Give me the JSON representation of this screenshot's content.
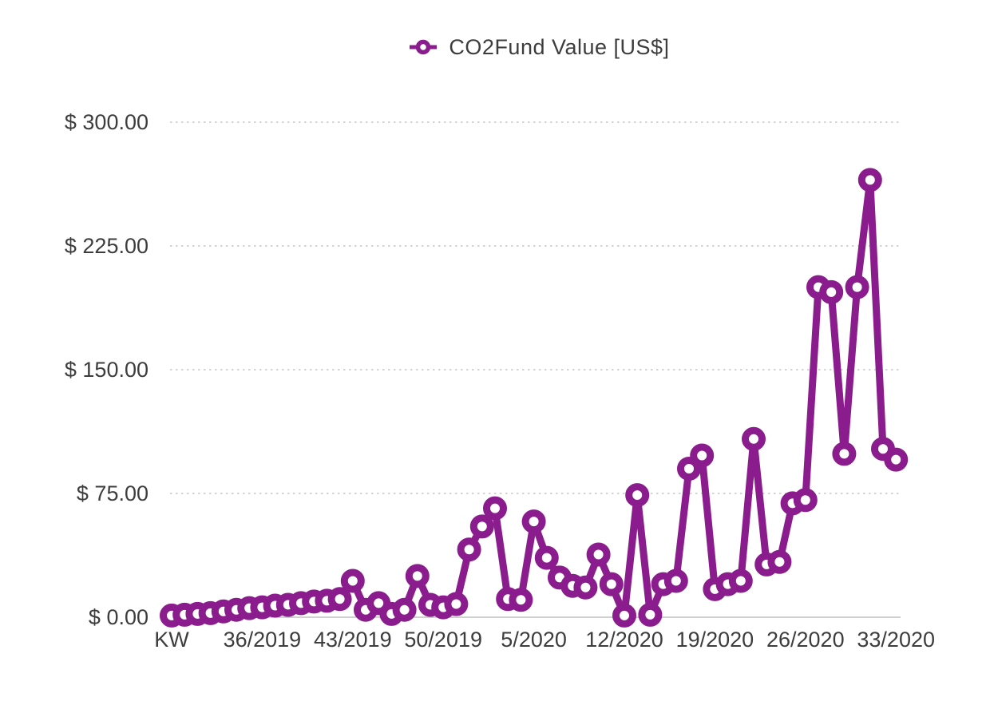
{
  "legend": {
    "label": "CO2Fund Value [US$]"
  },
  "chart_data": {
    "type": "line",
    "series": [
      {
        "name": "CO2Fund Value [US$]",
        "values": [
          1,
          1.5,
          2,
          2.5,
          3.5,
          4.5,
          5.5,
          6,
          7,
          7.5,
          8.5,
          9.5,
          10,
          11,
          22,
          4.5,
          8.5,
          2,
          4.5,
          25,
          7.5,
          6,
          8,
          41,
          55,
          66,
          11,
          10.5,
          58,
          36,
          24,
          19,
          18,
          38,
          20,
          1,
          74,
          1.5,
          20,
          22,
          90,
          98,
          17,
          20,
          22,
          108,
          32,
          33.5,
          69,
          71,
          200,
          197,
          99,
          200,
          265,
          102,
          95.5
        ]
      }
    ],
    "categories": [
      "KW",
      "30/2019",
      "31/2019",
      "32/2019",
      "33/2019",
      "34/2019",
      "35/2019",
      "36/2019",
      "37/2019",
      "38/2019",
      "39/2019",
      "40/2019",
      "41/2019",
      "42/2019",
      "43/2019",
      "44/2019",
      "45/2019",
      "46/2019",
      "47/2019",
      "48/2019",
      "49/2019",
      "50/2019",
      "51/2019",
      "52/2019",
      "1/2020",
      "2/2020",
      "3/2020",
      "4/2020",
      "5/2020",
      "6/2020",
      "7/2020",
      "8/2020",
      "9/2020",
      "10/2020",
      "11/2020",
      "12/2020",
      "13/2020",
      "14/2020",
      "15/2020",
      "16/2020",
      "17/2020",
      "18/2020",
      "19/2020",
      "20/2020",
      "21/2020",
      "22/2020",
      "23/2020",
      "24/2020",
      "25/2020",
      "26/2020",
      "27/2020",
      "28/2020",
      "29/2020",
      "30/2020",
      "31/2020",
      "32/2020",
      "33/2020"
    ],
    "x_tick_indices": [
      0,
      7,
      14,
      21,
      28,
      35,
      42,
      49,
      56
    ],
    "x_tick_labels": [
      "KW",
      "36/2019",
      "43/2019",
      "50/2019",
      "5/2020",
      "12/2020",
      "19/2020",
      "26/2020",
      "33/2020"
    ],
    "y_ticks": [
      0,
      75,
      150,
      225,
      300
    ],
    "y_tick_labels": [
      "$ 0.00",
      "$ 75.00",
      "$ 150.00",
      "$ 225.00",
      "$ 300.00"
    ],
    "ylim": [
      0,
      300
    ],
    "grid": "horizontal dotted",
    "legend_position": "top-center",
    "marker": "ring",
    "colors": {
      "series": "#8B1C8D",
      "grid": "#b9b9b9",
      "axis_line": "#b3b3b3",
      "text": "#3d3d3d",
      "background": "#ffffff"
    }
  }
}
